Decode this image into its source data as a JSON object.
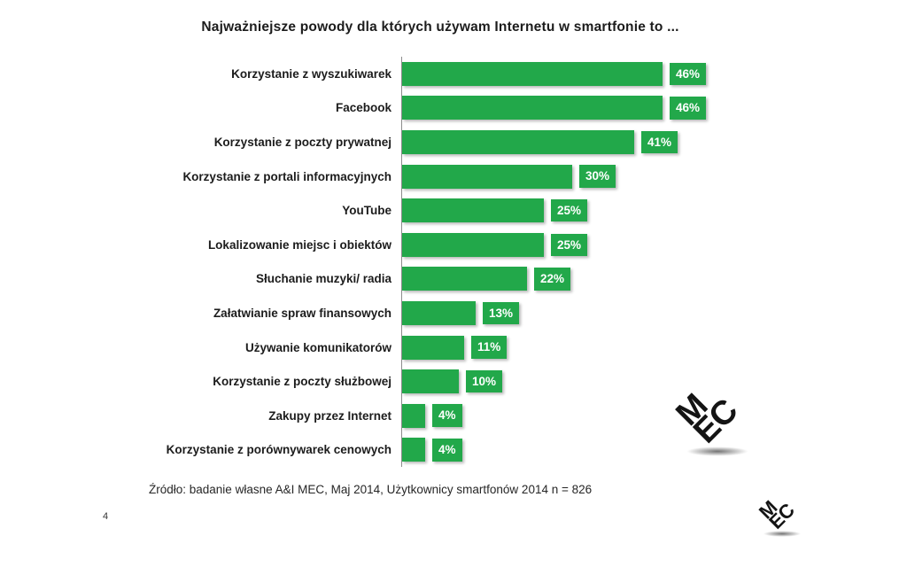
{
  "slide": {
    "title": "Najważniejsze powody dla których używam Internetu w smartfonie to  ...",
    "source": "Źródło: badanie własne A&I MEC, Maj 2014, Użytkownicy smartfonów 2014 n = 826",
    "page_number": "4"
  },
  "logo": {
    "text": "MEC",
    "line1": "M",
    "line2": "EC"
  },
  "chart_data": {
    "type": "bar",
    "orientation": "horizontal",
    "title": "Najważniejsze powody dla których używam Internetu w smartfonie to  ...",
    "categories": [
      "Korzystanie z wyszukiwarek",
      "Facebook",
      "Korzystanie z poczty prywatnej",
      "Korzystanie z portali informacyjnych",
      "YouTube",
      "Lokalizowanie miejsc i obiektów",
      "Słuchanie muzyki/ radia",
      "Załatwianie spraw finansowych",
      "Używanie komunikatorów",
      "Korzystanie z poczty służbowej",
      "Zakupy przez Internet",
      "Korzystanie z porównywarek cenowych"
    ],
    "values": [
      46,
      46,
      41,
      30,
      25,
      25,
      22,
      13,
      11,
      10,
      4,
      4
    ],
    "value_labels": [
      "46%",
      "46%",
      "41%",
      "30%",
      "25%",
      "25%",
      "22%",
      "13%",
      "11%",
      "10%",
      "4%",
      "4%"
    ],
    "xlim": [
      0,
      50
    ],
    "grid": false,
    "legend": false,
    "bar_color": "#22a84a",
    "value_label_text_color": "#ffffff",
    "axis_line_color": "#8c8c8c",
    "text_color": "#1c1c1c"
  }
}
